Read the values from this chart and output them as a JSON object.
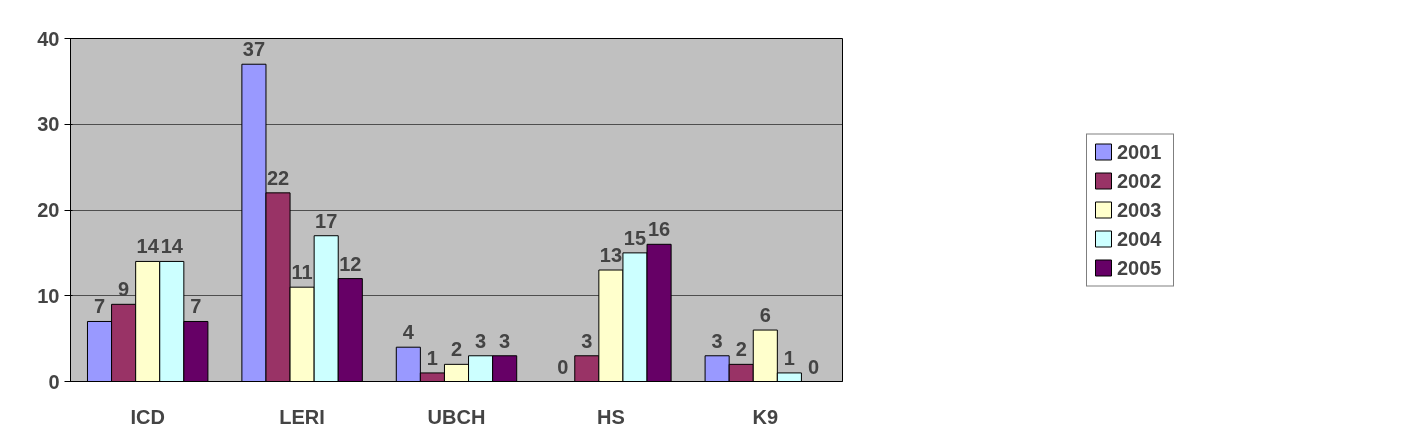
{
  "chart_data": {
    "type": "bar",
    "categories": [
      "ICD",
      "LERI",
      "UBCH",
      "HS",
      "K9"
    ],
    "series": [
      {
        "name": "2001",
        "color": "#9999ff",
        "values": [
          7,
          37,
          4,
          0,
          3
        ]
      },
      {
        "name": "2002",
        "color": "#993366",
        "values": [
          9,
          22,
          1,
          3,
          2
        ]
      },
      {
        "name": "2003",
        "color": "#ffffcc",
        "values": [
          14,
          11,
          2,
          13,
          6
        ]
      },
      {
        "name": "2004",
        "color": "#ccffff",
        "values": [
          14,
          17,
          3,
          15,
          1
        ]
      },
      {
        "name": "2005",
        "color": "#660066",
        "values": [
          7,
          12,
          3,
          16,
          0
        ]
      }
    ],
    "ylim": [
      0,
      40
    ],
    "yticks": [
      0,
      10,
      20,
      30,
      40
    ],
    "grid": "y",
    "legend": "right",
    "data_labels": true
  }
}
